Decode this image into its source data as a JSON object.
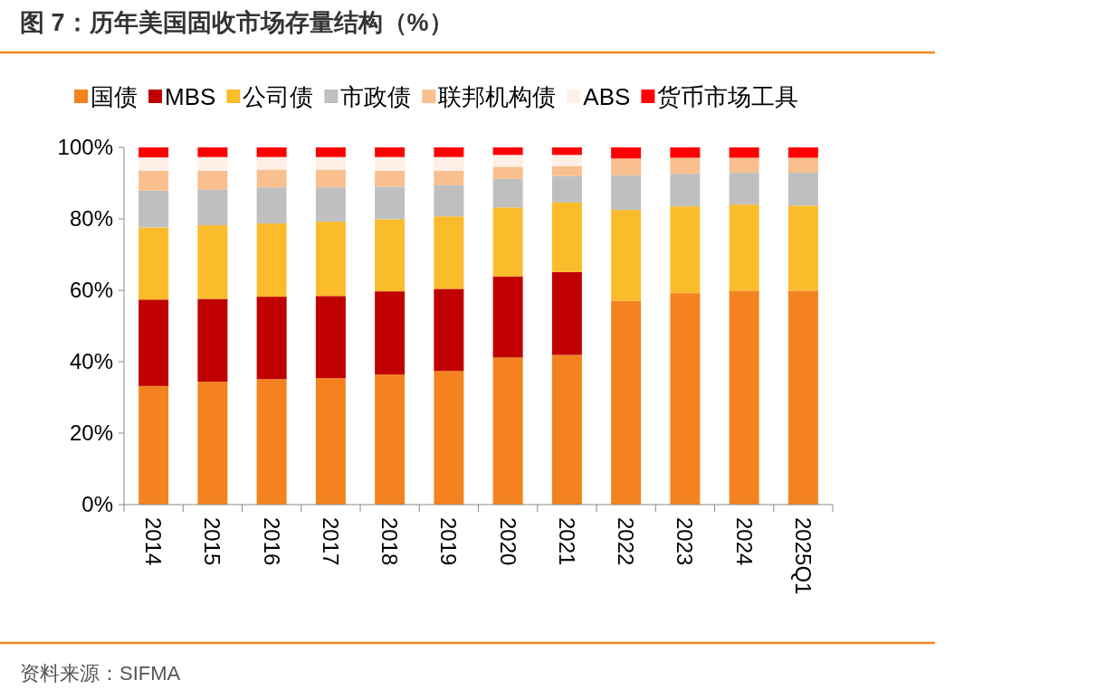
{
  "chart_data": {
    "type": "bar",
    "stacked": true,
    "title": "图 7：历年美国固收市场存量结构（%）",
    "categories": [
      "2014",
      "2015",
      "2016",
      "2017",
      "2018",
      "2019",
      "2020",
      "2021",
      "2022",
      "2023",
      "2024",
      "2025Q1"
    ],
    "series": [
      {
        "name": "国债",
        "color": "#f4831f",
        "values": [
          33.2,
          34.4,
          35.1,
          35.4,
          36.4,
          37.4,
          41.2,
          41.9,
          57.1,
          59.2,
          59.9,
          59.9
        ]
      },
      {
        "name": "MBS",
        "color": "#c00000",
        "values": [
          24.2,
          23.2,
          23.1,
          23.0,
          23.3,
          23.0,
          22.7,
          23.2,
          0,
          0,
          0,
          0
        ]
      },
      {
        "name": "公司债",
        "color": "#fbbc2b",
        "values": [
          20.2,
          20.6,
          20.5,
          20.8,
          20.2,
          20.3,
          19.3,
          19.5,
          25.4,
          24.3,
          24.1,
          23.8
        ]
      },
      {
        "name": "市政债",
        "color": "#bfbfbf",
        "values": [
          10.3,
          10.0,
          10.1,
          9.6,
          9.1,
          8.7,
          8.0,
          7.4,
          9.7,
          9.1,
          8.9,
          9.2
        ]
      },
      {
        "name": "联邦机构债",
        "color": "#f9bf8f",
        "values": [
          5.6,
          5.3,
          5.0,
          5.0,
          4.5,
          4.1,
          3.4,
          2.8,
          4.7,
          4.5,
          4.2,
          4.2
        ]
      },
      {
        "name": "ABS",
        "color": "#fef0e6",
        "values": [
          3.7,
          3.8,
          3.5,
          3.5,
          3.8,
          3.8,
          3.3,
          3.1,
          0,
          0,
          0,
          0
        ]
      },
      {
        "name": "货币市场工具",
        "color": "#ff0000",
        "values": [
          2.8,
          2.7,
          2.7,
          2.7,
          2.7,
          2.7,
          2.1,
          2.1,
          3.1,
          2.9,
          2.9,
          2.9
        ]
      }
    ],
    "ylim": [
      0,
      100
    ],
    "yticks": [
      {
        "value": 0,
        "label": "0%"
      },
      {
        "value": 20,
        "label": "20%"
      },
      {
        "value": 40,
        "label": "40%"
      },
      {
        "value": 60,
        "label": "60%"
      },
      {
        "value": 80,
        "label": "80%"
      },
      {
        "value": 100,
        "label": "100%"
      }
    ],
    "grid": false,
    "legend": "top",
    "annotations": [
      "资料来源：SIFMA"
    ]
  }
}
